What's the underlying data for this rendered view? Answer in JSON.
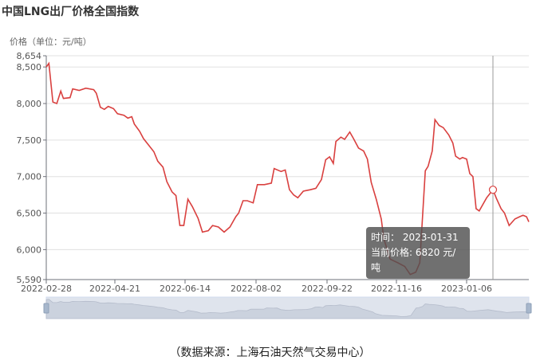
{
  "chart_data": {
    "type": "line",
    "title": "中国LNG出厂价格全国指数",
    "ylabel": "价格（单位：元/吨）",
    "xlabel": "",
    "ylim": [
      5590,
      8654
    ],
    "y_ticks": [
      "8,654",
      "8,500",
      "8,000",
      "7,500",
      "7,000",
      "6,500",
      "6,000",
      "5,590"
    ],
    "y_tick_values": [
      8654,
      8500,
      8000,
      7500,
      7000,
      6500,
      6000,
      5590
    ],
    "x_ticks": [
      "2022-02-28",
      "2022-04-21",
      "2022-06-14",
      "2022-08-02",
      "2022-09-22",
      "2022-11-16",
      "2023-01-06"
    ],
    "grid": true,
    "line_color": "#d9403f",
    "series": [
      {
        "x": [
          "2022-02-28",
          "2022-03-02",
          "2022-03-05",
          "2022-03-08",
          "2022-03-11",
          "2022-03-13",
          "2022-03-18",
          "2022-03-20",
          "2022-03-25",
          "2022-03-30",
          "2022-04-05",
          "2022-04-07",
          "2022-04-10",
          "2022-04-13",
          "2022-04-16",
          "2022-04-20",
          "2022-04-23",
          "2022-04-28",
          "2022-05-01",
          "2022-05-04",
          "2022-05-06",
          "2022-05-10",
          "2022-05-13",
          "2022-05-17",
          "2022-05-21",
          "2022-05-24",
          "2022-05-28",
          "2022-05-31",
          "2022-06-04",
          "2022-06-07",
          "2022-06-10",
          "2022-06-13",
          "2022-06-16",
          "2022-06-19",
          "2022-06-23",
          "2022-06-26",
          "2022-06-30",
          "2022-07-03",
          "2022-07-07",
          "2022-07-11",
          "2022-07-15",
          "2022-07-19",
          "2022-07-21",
          "2022-07-24",
          "2022-07-27",
          "2022-07-31",
          "2022-08-03",
          "2022-08-08",
          "2022-08-13",
          "2022-08-15",
          "2022-08-20",
          "2022-08-23",
          "2022-08-26",
          "2022-08-29",
          "2022-09-01",
          "2022-09-05",
          "2022-09-10",
          "2022-09-14",
          "2022-09-18",
          "2022-09-21",
          "2022-09-24",
          "2022-09-27",
          "2022-09-29",
          "2022-10-03",
          "2022-10-06",
          "2022-10-10",
          "2022-10-13",
          "2022-10-17",
          "2022-10-21",
          "2022-10-24",
          "2022-10-27",
          "2022-10-31",
          "2022-11-04",
          "2022-11-06",
          "2022-11-11",
          "2022-11-17",
          "2022-11-22",
          "2022-11-26",
          "2022-11-30",
          "2022-12-03",
          "2022-12-04",
          "2022-12-07",
          "2022-12-09",
          "2022-12-12",
          "2022-12-14",
          "2022-12-17",
          "2022-12-20",
          "2022-12-24",
          "2022-12-27",
          "2022-12-29",
          "2023-01-01",
          "2023-01-03",
          "2023-01-06",
          "2023-01-09",
          "2023-01-12",
          "2023-01-15",
          "2023-01-18",
          "2023-01-25",
          "2023-01-31",
          "2023-02-03",
          "2023-02-07",
          "2023-02-10",
          "2023-02-14",
          "2023-02-19",
          "2023-02-23",
          "2023-02-26",
          "2023-03-01",
          "2023-03-03"
        ],
        "values": [
          8500,
          8550,
          8020,
          8000,
          8170,
          8070,
          8080,
          8200,
          8180,
          8210,
          8190,
          8140,
          7950,
          7920,
          7960,
          7930,
          7860,
          7840,
          7800,
          7820,
          7720,
          7620,
          7520,
          7430,
          7340,
          7210,
          7130,
          6930,
          6790,
          6740,
          6330,
          6330,
          6690,
          6590,
          6430,
          6240,
          6260,
          6330,
          6310,
          6240,
          6310,
          6450,
          6500,
          6670,
          6670,
          6640,
          6890,
          6890,
          6910,
          7110,
          7070,
          7090,
          6820,
          6750,
          6710,
          6800,
          6820,
          6840,
          6960,
          7230,
          7270,
          7180,
          7480,
          7540,
          7510,
          7610,
          7520,
          7390,
          7350,
          7240,
          6920,
          6690,
          6420,
          6150,
          5870,
          5820,
          5770,
          5660,
          5690,
          5820,
          6150,
          7080,
          7140,
          7350,
          7780,
          7700,
          7670,
          7570,
          7460,
          7280,
          7240,
          7260,
          7240,
          7040,
          7000,
          6560,
          6530,
          6710,
          6820,
          6700,
          6560,
          6500,
          6330,
          6420,
          6450,
          6470,
          6450,
          6380
        ]
      }
    ],
    "highlight": {
      "date": "2023-01-31",
      "value": 6820
    },
    "tooltip": {
      "time_label": "时间：",
      "time_value": "2023-01-31",
      "price_label": "当前价格:",
      "price_value": "6820",
      "unit": "元/吨"
    },
    "data_zoom": {
      "range_percent": [
        0,
        100
      ]
    }
  },
  "footer": {
    "source": "（数据来源：上海石油天然气交易中心）"
  }
}
